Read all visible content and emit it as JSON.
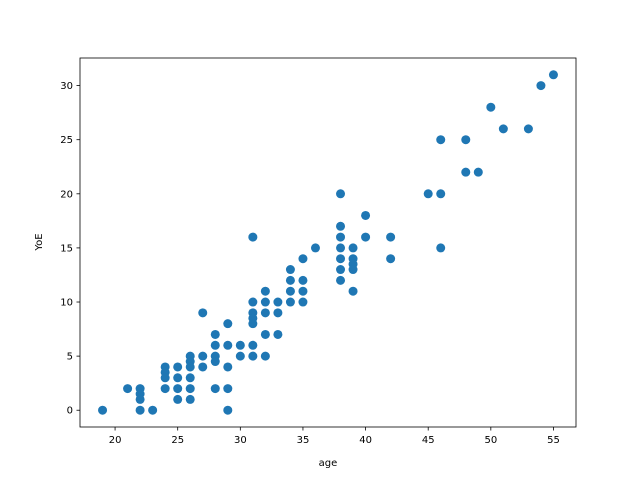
{
  "chart_data": {
    "type": "scatter",
    "xlabel": "age",
    "ylabel": "YoE",
    "color": "#1f77b4",
    "x": [
      19,
      21,
      22,
      22,
      22,
      22,
      23,
      24,
      24,
      24,
      24,
      25,
      25,
      25,
      25,
      26,
      26,
      26,
      26,
      26,
      26,
      27,
      27,
      27,
      28,
      28,
      28,
      28,
      28,
      29,
      29,
      29,
      29,
      29,
      30,
      30,
      31,
      31,
      31,
      31,
      31,
      31,
      31,
      32,
      32,
      32,
      32,
      32,
      33,
      33,
      33,
      34,
      34,
      34,
      34,
      35,
      35,
      35,
      35,
      36,
      38,
      38,
      38,
      38,
      38,
      38,
      38,
      39,
      39,
      39,
      39,
      39,
      40,
      40,
      42,
      42,
      45,
      46,
      46,
      46,
      48,
      48,
      49,
      50,
      51,
      53,
      54,
      55
    ],
    "values": [
      0,
      2,
      2,
      1.5,
      1,
      0,
      0,
      4,
      3.5,
      3,
      2,
      4,
      3,
      2,
      1,
      5,
      4.5,
      4,
      3,
      2,
      1,
      9,
      5,
      4,
      7,
      6,
      5,
      4.5,
      2,
      8,
      6,
      4,
      2,
      0,
      6,
      5,
      16,
      10,
      9,
      8.5,
      8,
      6,
      5,
      11,
      10,
      9,
      7,
      5,
      10,
      9,
      7,
      13,
      12,
      11,
      10,
      14,
      12,
      11,
      10,
      15,
      20,
      17,
      16,
      15,
      14,
      13,
      12,
      15,
      14,
      13.5,
      13,
      11,
      18,
      16,
      16,
      14,
      20,
      25,
      20,
      15,
      25,
      22,
      22,
      28,
      26,
      26,
      30,
      31
    ],
    "xlim": [
      17.2,
      56.8
    ],
    "ylim": [
      -1.55,
      32.55
    ],
    "xticks": [
      20,
      25,
      30,
      35,
      40,
      45,
      50,
      55
    ],
    "yticks": [
      0,
      5,
      10,
      15,
      20,
      25,
      30
    ]
  }
}
